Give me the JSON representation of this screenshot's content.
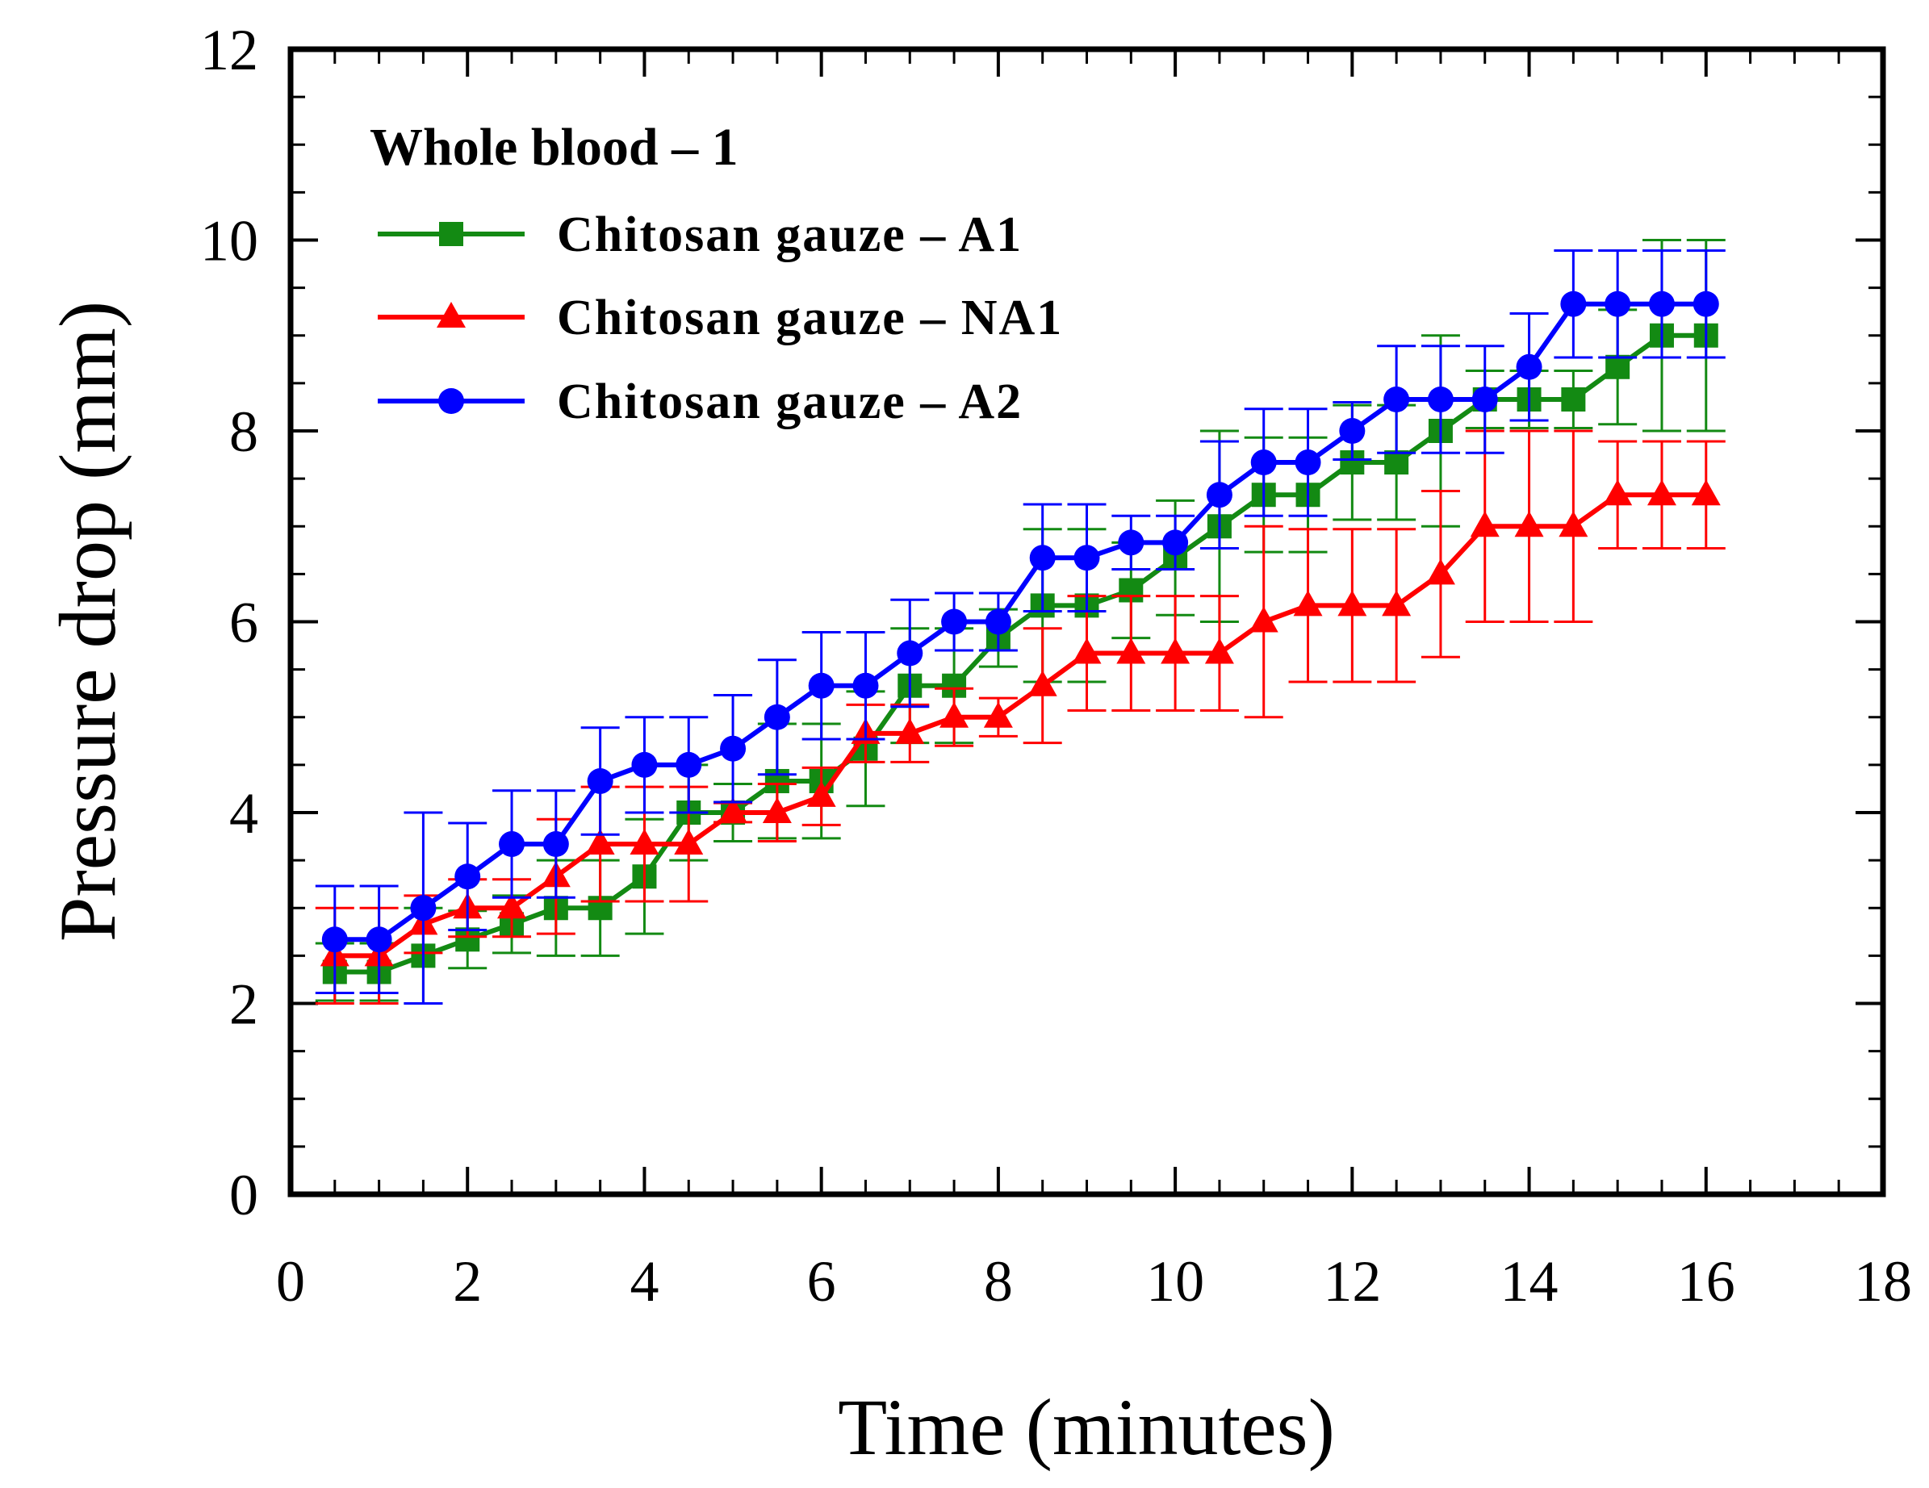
{
  "chart_data": {
    "type": "line",
    "title": "",
    "xlabel": "Time (minutes)",
    "ylabel": "Pressure drop (mm)",
    "xlim": [
      0,
      18
    ],
    "ylim": [
      0,
      12
    ],
    "xticks": [
      0,
      2,
      4,
      6,
      8,
      10,
      12,
      14,
      16,
      18
    ],
    "yticks": [
      0,
      2,
      4,
      6,
      8,
      10,
      12
    ],
    "x_minor_step": 0.5,
    "y_minor_step": 0.5,
    "legend_title": "Whole blood – 1",
    "legend_position": "top-left",
    "series": [
      {
        "name": "Chitosan gauze – A1",
        "color": "#138a13",
        "marker": "square",
        "x": [
          0.5,
          1,
          1.5,
          2,
          2.5,
          3,
          3.5,
          4,
          4.5,
          5,
          5.5,
          6,
          6.5,
          7,
          7.5,
          8,
          8.5,
          9,
          9.5,
          10,
          10.5,
          11,
          11.5,
          12,
          12.5,
          13,
          13.5,
          14,
          14.5,
          15,
          15.5,
          16
        ],
        "y": [
          2.33,
          2.33,
          2.5,
          2.67,
          2.83,
          3.0,
          3.0,
          3.33,
          4.0,
          4.0,
          4.33,
          4.33,
          4.67,
          5.33,
          5.33,
          5.83,
          6.17,
          6.17,
          6.33,
          6.67,
          7.0,
          7.33,
          7.33,
          7.67,
          7.67,
          8.0,
          8.33,
          8.33,
          8.33,
          8.67,
          9.0,
          9.0
        ],
        "err": [
          0.3,
          0.3,
          0.5,
          0.3,
          0.3,
          0.5,
          0.5,
          0.6,
          0.5,
          0.3,
          0.6,
          0.6,
          0.6,
          0.6,
          0.6,
          0.3,
          0.8,
          0.8,
          0.5,
          0.6,
          1.0,
          0.6,
          0.6,
          0.6,
          0.6,
          1.0,
          0.3,
          0.3,
          0.3,
          0.6,
          1.0,
          1.0
        ]
      },
      {
        "name": "Chitosan gauze – NA1",
        "color": "#ff0000",
        "marker": "triangle",
        "x": [
          0.5,
          1,
          1.5,
          2,
          2.5,
          3,
          3.5,
          4,
          4.5,
          5,
          5.5,
          6,
          6.5,
          7,
          7.5,
          8,
          8.5,
          9,
          9.5,
          10,
          10.5,
          11,
          11.5,
          12,
          12.5,
          13,
          13.5,
          14,
          14.5,
          15,
          15.5,
          16
        ],
        "y": [
          2.5,
          2.5,
          2.83,
          3.0,
          3.0,
          3.33,
          3.67,
          3.67,
          3.67,
          4.0,
          4.0,
          4.17,
          4.83,
          4.83,
          5.0,
          5.0,
          5.33,
          5.67,
          5.67,
          5.67,
          5.67,
          6.0,
          6.17,
          6.17,
          6.17,
          6.5,
          7.0,
          7.0,
          7.0,
          7.33,
          7.33,
          7.33
        ],
        "err": [
          0.5,
          0.5,
          0.3,
          0.3,
          0.3,
          0.6,
          0.6,
          0.6,
          0.6,
          0.1,
          0.3,
          0.3,
          0.3,
          0.3,
          0.3,
          0.2,
          0.6,
          0.6,
          0.6,
          0.6,
          0.6,
          1.0,
          0.8,
          0.8,
          0.8,
          0.87,
          1.0,
          1.0,
          1.0,
          0.56,
          0.56,
          0.56
        ]
      },
      {
        "name": "Chitosan gauze – A2",
        "color": "#0000ff",
        "marker": "circle",
        "x": [
          0.5,
          1,
          1.5,
          2,
          2.5,
          3,
          3.5,
          4,
          4.5,
          5,
          5.5,
          6,
          6.5,
          7,
          7.5,
          8,
          8.5,
          9,
          9.5,
          10,
          10.5,
          11,
          11.5,
          12,
          12.5,
          13,
          13.5,
          14,
          14.5,
          15,
          15.5,
          16
        ],
        "y": [
          2.67,
          2.67,
          3.0,
          3.33,
          3.67,
          3.67,
          4.33,
          4.5,
          4.5,
          4.67,
          5.0,
          5.33,
          5.33,
          5.67,
          6.0,
          6.0,
          6.67,
          6.67,
          6.83,
          6.83,
          7.33,
          7.67,
          7.67,
          8.0,
          8.33,
          8.33,
          8.33,
          8.67,
          9.33,
          9.33,
          9.33,
          9.33
        ],
        "err": [
          0.56,
          0.56,
          1.0,
          0.56,
          0.56,
          0.56,
          0.56,
          0.5,
          0.5,
          0.56,
          0.6,
          0.56,
          0.56,
          0.56,
          0.3,
          0.3,
          0.56,
          0.56,
          0.28,
          0.28,
          0.56,
          0.56,
          0.56,
          0.3,
          0.56,
          0.56,
          0.56,
          0.56,
          0.56,
          0.56,
          0.56,
          0.56
        ]
      }
    ]
  }
}
